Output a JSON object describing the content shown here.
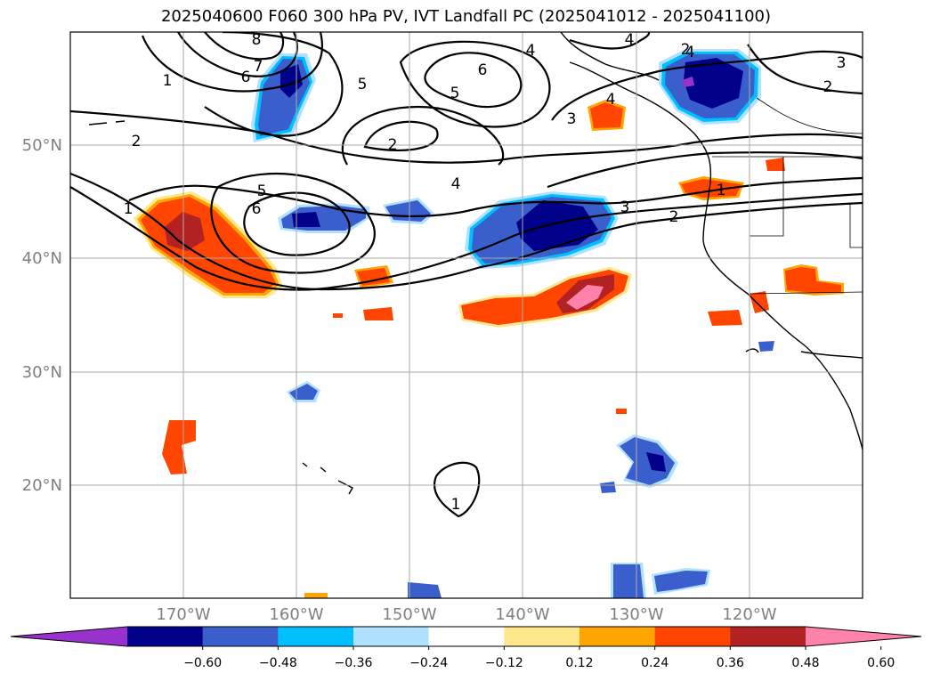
{
  "title": "2025040600 F060 300 hPa PV, IVT Landfall PC (2025041012 - 2025041100)",
  "lat_labels": [
    "50°N",
    "40°N",
    "30°N",
    "20°N"
  ],
  "lon_labels": [
    "170°W",
    "160°W",
    "150°W",
    "140°W",
    "130°W",
    "120°W"
  ],
  "contour_labels": [
    "8",
    "7",
    "6",
    "5",
    "1",
    "2",
    "6",
    "5",
    "4",
    "2",
    "4",
    "3",
    "3",
    "2",
    "1",
    "6",
    "5",
    "4",
    "3",
    "2",
    "1",
    "4",
    "1",
    "4",
    "2"
  ],
  "colorbar": {
    "ticks": [
      "−0.60",
      "−0.48",
      "−0.36",
      "−0.24",
      "−0.12",
      "0.12",
      "0.24",
      "0.36",
      "0.48",
      "0.60"
    ],
    "colors": [
      "#9932cc",
      "#00008b",
      "#3a5fcd",
      "#00bfff",
      "#b0e2ff",
      "#ffffff",
      "#ffe88c",
      "#ffa500",
      "#ff4500",
      "#b22222",
      "#ff82ab"
    ]
  },
  "chart_data": {
    "type": "map",
    "projection": "lat-lon",
    "lon_range": [
      -180,
      -110
    ],
    "lat_range": [
      10,
      60
    ],
    "gridlines": true,
    "shaded_field": "IVT Landfall PC",
    "contour_field": "300 hPa PV",
    "shading_levels": [
      -0.6,
      -0.48,
      -0.36,
      -0.24,
      -0.12,
      0.12,
      0.24,
      0.36,
      0.48,
      0.6
    ],
    "colorbar_extend": "both"
  }
}
